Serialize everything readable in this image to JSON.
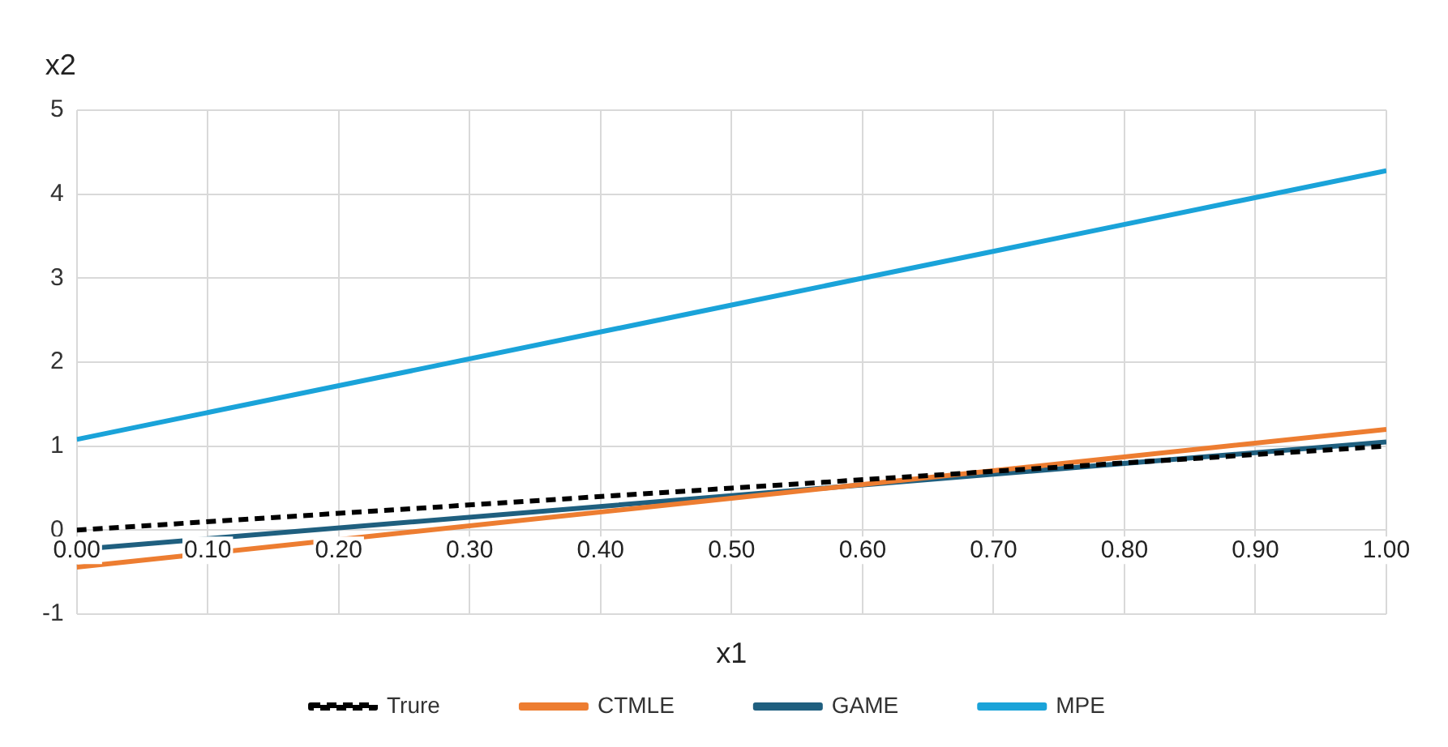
{
  "chart_data": {
    "type": "line",
    "xlabel": "x1",
    "ylabel": "x2",
    "x": [
      0,
      0.5,
      1
    ],
    "series": [
      {
        "name": "Trure",
        "color": "#000000",
        "values": [
          0,
          0.5,
          1.0
        ],
        "line_style": "dashed"
      },
      {
        "name": "CTMLE",
        "color": "#ed7d31",
        "values": [
          -0.44,
          0.38,
          1.2
        ]
      },
      {
        "name": "GAME",
        "color": "#1f5f7f",
        "values": [
          -0.23,
          0.41,
          1.05
        ]
      },
      {
        "name": "MPE",
        "color": "#1aa3d9",
        "values": [
          1.08,
          2.68,
          4.28
        ]
      }
    ],
    "xlim": [
      0,
      1
    ],
    "xticks": [
      {
        "value": 0,
        "label": "0.00"
      },
      {
        "value": 0.1,
        "label": "0.10"
      },
      {
        "value": 0.2,
        "label": "0.20"
      },
      {
        "value": 0.3,
        "label": "0.30"
      },
      {
        "value": 0.4,
        "label": "0.40"
      },
      {
        "value": 0.5,
        "label": "0.50"
      },
      {
        "value": 0.6,
        "label": "0.60"
      },
      {
        "value": 0.7,
        "label": "0.70"
      },
      {
        "value": 0.8,
        "label": "0.80"
      },
      {
        "value": 0.9,
        "label": "0.90"
      },
      {
        "value": 1,
        "label": "1.00"
      }
    ],
    "ylim": [
      -1,
      5
    ],
    "yticks": [
      -1,
      0,
      1,
      2,
      3,
      4,
      5
    ],
    "grid": true,
    "legend": "bottom",
    "marker": "none"
  }
}
